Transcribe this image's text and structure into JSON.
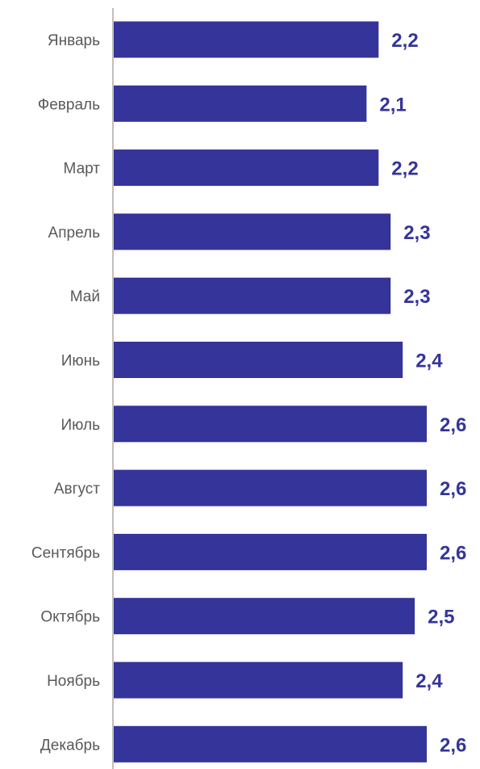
{
  "chart_data": {
    "type": "bar",
    "orientation": "horizontal",
    "categories": [
      "Январь",
      "Февраль",
      "Март",
      "Апрель",
      "Май",
      "Июнь",
      "Июль",
      "Август",
      "Сентябрь",
      "Октябрь",
      "Ноябрь",
      "Декабрь"
    ],
    "values": [
      2.2,
      2.1,
      2.2,
      2.3,
      2.3,
      2.4,
      2.6,
      2.6,
      2.6,
      2.5,
      2.4,
      2.6
    ],
    "value_labels": [
      "2,2",
      "2,1",
      "2,2",
      "2,3",
      "2,3",
      "2,4",
      "2,6",
      "2,6",
      "2,6",
      "2,5",
      "2,4",
      "2,6"
    ],
    "title": "",
    "xlabel": "",
    "ylabel": "",
    "xlim": [
      0,
      2.6
    ],
    "grid": false,
    "legend": "none",
    "bar_color": "#35349A",
    "value_label_color": "#35349A",
    "axis_color": "#BFBFBF",
    "category_label_color": "#595959"
  }
}
